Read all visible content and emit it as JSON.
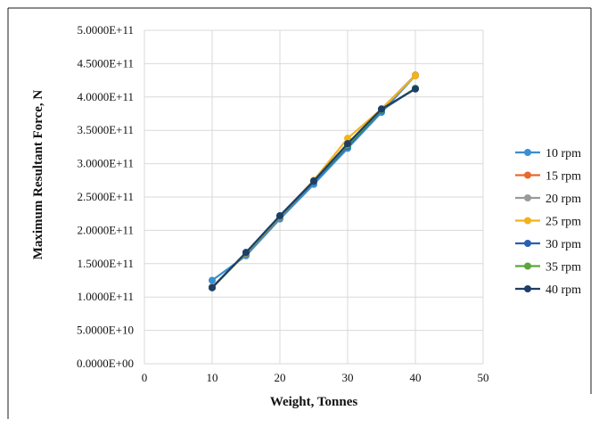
{
  "chart_data": {
    "type": "line",
    "title": "",
    "xlabel": "Weight, Tonnes",
    "ylabel": "Maximum Resultant Force, N",
    "xlim": [
      0,
      50
    ],
    "ylim": [
      0,
      500000000000
    ],
    "x_ticks": [
      "0",
      "10",
      "20",
      "30",
      "40",
      "50"
    ],
    "y_ticks": [
      "0.0000E+00",
      "5.0000E+10",
      "1.0000E+11",
      "1.5000E+11",
      "2.0000E+11",
      "2.5000E+11",
      "3.0000E+11",
      "3.5000E+11",
      "4.0000E+11",
      "4.5000E+11",
      "5.0000E+11"
    ],
    "x": [
      10,
      15,
      20,
      25,
      30,
      35,
      40
    ],
    "grid": true,
    "legend_position": "right",
    "series": [
      {
        "name": "10 rpm",
        "color": "#3a8fd0",
        "values": [
          125000000000,
          162000000000,
          217000000000,
          269000000000,
          323000000000,
          377000000000,
          432000000000
        ]
      },
      {
        "name": "15 rpm",
        "color": "#e8692a",
        "values": [
          115000000000,
          165000000000,
          220000000000,
          273000000000,
          328000000000,
          381000000000,
          432000000000
        ]
      },
      {
        "name": "20 rpm",
        "color": "#9a9a9a",
        "values": [
          115000000000,
          166000000000,
          221000000000,
          274000000000,
          330000000000,
          382000000000,
          433000000000
        ]
      },
      {
        "name": "25 rpm",
        "color": "#f3b21a",
        "values": [
          114000000000,
          166000000000,
          221000000000,
          275000000000,
          338000000000,
          382000000000,
          432000000000
        ]
      },
      {
        "name": "30 rpm",
        "color": "#2a5fb0",
        "values": [
          114000000000,
          166000000000,
          221000000000,
          273000000000,
          326000000000,
          380000000000,
          413000000000
        ]
      },
      {
        "name": "35 rpm",
        "color": "#5aa63a",
        "values": [
          114000000000,
          166000000000,
          221000000000,
          274000000000,
          328000000000,
          381000000000,
          413000000000
        ]
      },
      {
        "name": "40 rpm",
        "color": "#1d3e68",
        "values": [
          114000000000,
          167000000000,
          222000000000,
          274000000000,
          330000000000,
          382000000000,
          412000000000
        ]
      }
    ]
  }
}
